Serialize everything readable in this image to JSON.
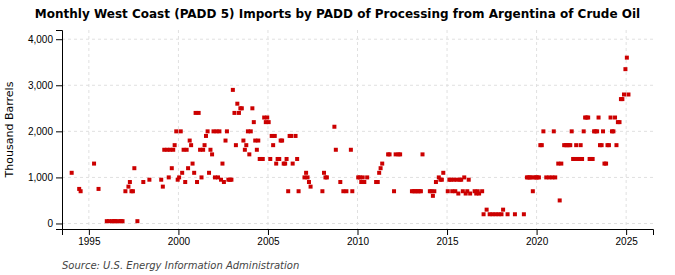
{
  "chart_data": {
    "type": "scatter",
    "title": "Monthly West Coast (PADD 5) Imports by PADD of Processing from Argentina of Crude Oil",
    "ylabel": "Thousand Barrels",
    "source": "Source: U.S. Energy Information Administration",
    "color": "#CC0000",
    "marker": "square",
    "grid": true,
    "xlim": [
      1993.5,
      2026.5
    ],
    "ylim": [
      -120,
      4200
    ],
    "xticks": [
      1995,
      2000,
      2005,
      2010,
      2015,
      2020,
      2025
    ],
    "yticks": [
      0,
      {
        "value": 1000,
        "label": "1,000"
      },
      {
        "value": 2000,
        "label": "2,000"
      },
      {
        "value": 3000,
        "label": "3,000"
      },
      {
        "value": 4000,
        "label": "4,000"
      }
    ],
    "x": [
      1994.04,
      1994.46,
      1994.54,
      1995.29,
      1995.54,
      1996.0,
      1996.12,
      1996.29,
      1996.38,
      1996.46,
      1996.54,
      1996.71,
      1996.79,
      1996.88,
      1997.04,
      1997.21,
      1997.29,
      1997.38,
      1997.46,
      1997.54,
      1997.71,
      1998.04,
      1998.38,
      1999.04,
      1999.13,
      1999.21,
      1999.38,
      1999.46,
      1999.54,
      1999.63,
      1999.71,
      1999.79,
      1999.88,
      1999.96,
      2000.04,
      2000.13,
      2000.21,
      2000.29,
      2000.38,
      2000.46,
      2000.54,
      2000.63,
      2000.71,
      2000.79,
      2000.88,
      2000.96,
      2001.04,
      2001.13,
      2001.21,
      2001.29,
      2001.38,
      2001.46,
      2001.54,
      2001.63,
      2001.71,
      2001.79,
      2001.88,
      2001.96,
      2002.04,
      2002.13,
      2002.21,
      2002.29,
      2002.38,
      2002.46,
      2002.54,
      2002.63,
      2002.71,
      2002.79,
      2002.88,
      2002.96,
      2003.04,
      2003.13,
      2003.21,
      2003.29,
      2003.38,
      2003.46,
      2003.54,
      2003.63,
      2003.71,
      2003.79,
      2003.88,
      2003.96,
      2004.04,
      2004.13,
      2004.21,
      2004.29,
      2004.38,
      2004.46,
      2004.54,
      2004.63,
      2004.71,
      2004.79,
      2004.88,
      2004.96,
      2005.04,
      2005.13,
      2005.21,
      2005.29,
      2005.38,
      2005.46,
      2005.54,
      2005.63,
      2005.71,
      2005.79,
      2005.88,
      2005.96,
      2006.04,
      2006.13,
      2006.21,
      2006.29,
      2006.38,
      2006.54,
      2006.63,
      2006.71,
      2007.04,
      2007.13,
      2007.21,
      2007.29,
      2007.38,
      2008.04,
      2008.13,
      2008.21,
      2008.29,
      2008.71,
      2008.79,
      2009.04,
      2009.21,
      2009.38,
      2009.63,
      2009.71,
      2010.04,
      2010.13,
      2010.21,
      2010.29,
      2010.38,
      2010.54,
      2011.04,
      2011.13,
      2011.21,
      2011.29,
      2011.38,
      2011.71,
      2011.79,
      2012.04,
      2012.13,
      2012.29,
      2012.38,
      2013.04,
      2013.13,
      2013.21,
      2013.29,
      2013.38,
      2013.46,
      2013.54,
      2013.63,
      2014.04,
      2014.13,
      2014.21,
      2014.29,
      2014.38,
      2014.54,
      2014.63,
      2014.71,
      2014.79,
      2015.04,
      2015.13,
      2015.21,
      2015.29,
      2015.38,
      2015.46,
      2015.54,
      2015.63,
      2015.71,
      2015.79,
      2015.88,
      2015.96,
      2016.04,
      2016.13,
      2016.21,
      2016.29,
      2016.54,
      2016.63,
      2016.71,
      2016.79,
      2016.96,
      2017.04,
      2017.21,
      2017.38,
      2017.54,
      2017.71,
      2017.88,
      2018.04,
      2018.13,
      2018.38,
      2018.79,
      2019.29,
      2019.46,
      2019.54,
      2019.63,
      2019.71,
      2019.79,
      2019.88,
      2019.96,
      2020.04,
      2020.13,
      2020.21,
      2020.29,
      2020.38,
      2020.54,
      2020.71,
      2020.88,
      2020.96,
      2021.04,
      2021.21,
      2021.29,
      2021.38,
      2021.54,
      2021.63,
      2021.71,
      2021.79,
      2021.88,
      2021.96,
      2022.04,
      2022.13,
      2022.21,
      2022.29,
      2022.38,
      2022.46,
      2022.54,
      2022.63,
      2022.71,
      2022.79,
      2022.88,
      2022.96,
      2023.04,
      2023.13,
      2023.21,
      2023.29,
      2023.38,
      2023.46,
      2023.54,
      2023.63,
      2023.71,
      2023.79,
      2023.88,
      2023.96,
      2024.04,
      2024.13,
      2024.21,
      2024.29,
      2024.38,
      2024.46,
      2024.54,
      2024.63,
      2024.71,
      2024.79,
      2024.88,
      2024.96,
      2025.04,
      2025.13
    ],
    "values": [
      1100,
      750,
      700,
      1300,
      750,
      50,
      50,
      50,
      50,
      50,
      50,
      50,
      50,
      50,
      700,
      800,
      900,
      700,
      700,
      1200,
      50,
      900,
      950,
      950,
      800,
      1600,
      1600,
      1000,
      1600,
      1200,
      1600,
      1700,
      2000,
      950,
      1000,
      2000,
      1100,
      1600,
      900,
      1600,
      1200,
      1800,
      1700,
      1300,
      1100,
      2400,
      900,
      2400,
      1600,
      1000,
      1600,
      1700,
      1900,
      2000,
      1100,
      1600,
      1500,
      2000,
      1000,
      2000,
      1000,
      2000,
      950,
      1300,
      900,
      1800,
      2000,
      950,
      950,
      950,
      2900,
      2400,
      1700,
      2600,
      2400,
      2500,
      2500,
      1800,
      1600,
      1700,
      2000,
      1500,
      2000,
      2500,
      2200,
      1800,
      1600,
      1800,
      1400,
      1400,
      1400,
      2300,
      2200,
      2300,
      2200,
      1400,
      1900,
      1700,
      1900,
      1300,
      1400,
      1400,
      1800,
      1800,
      1300,
      1300,
      1400,
      700,
      1900,
      1900,
      1300,
      1900,
      1400,
      700,
      1000,
      1100,
      1000,
      900,
      800,
      700,
      1100,
      1000,
      1000,
      2100,
      1600,
      900,
      700,
      700,
      1600,
      700,
      1000,
      1000,
      900,
      1000,
      900,
      1000,
      900,
      900,
      1100,
      1200,
      1300,
      1500,
      1500,
      700,
      1500,
      1500,
      1500,
      700,
      700,
      700,
      700,
      700,
      700,
      700,
      1500,
      700,
      700,
      600,
      700,
      900,
      1000,
      950,
      950,
      1100,
      700,
      950,
      950,
      700,
      950,
      700,
      950,
      650,
      950,
      950,
      700,
      1000,
      650,
      700,
      950,
      650,
      700,
      650,
      700,
      650,
      700,
      200,
      300,
      200,
      200,
      200,
      200,
      200,
      300,
      200,
      200,
      200,
      1000,
      1000,
      1000,
      1000,
      700,
      1000,
      1000,
      1000,
      1000,
      1700,
      1700,
      2000,
      1000,
      1000,
      1000,
      2000,
      1000,
      1300,
      500,
      1300,
      1700,
      1700,
      1700,
      1700,
      1700,
      2000,
      1400,
      1400,
      1700,
      1400,
      1400,
      1700,
      1400,
      2000,
      2300,
      2300,
      2300,
      1400,
      1400,
      1400,
      2000,
      2000,
      2000,
      2300,
      1700,
      1700,
      2000,
      1300,
      1300,
      1700,
      1700,
      2300,
      2000,
      2000,
      2300,
      1700,
      2200,
      2200,
      2700,
      2700,
      2800,
      3350,
      3600,
      2800
    ]
  }
}
